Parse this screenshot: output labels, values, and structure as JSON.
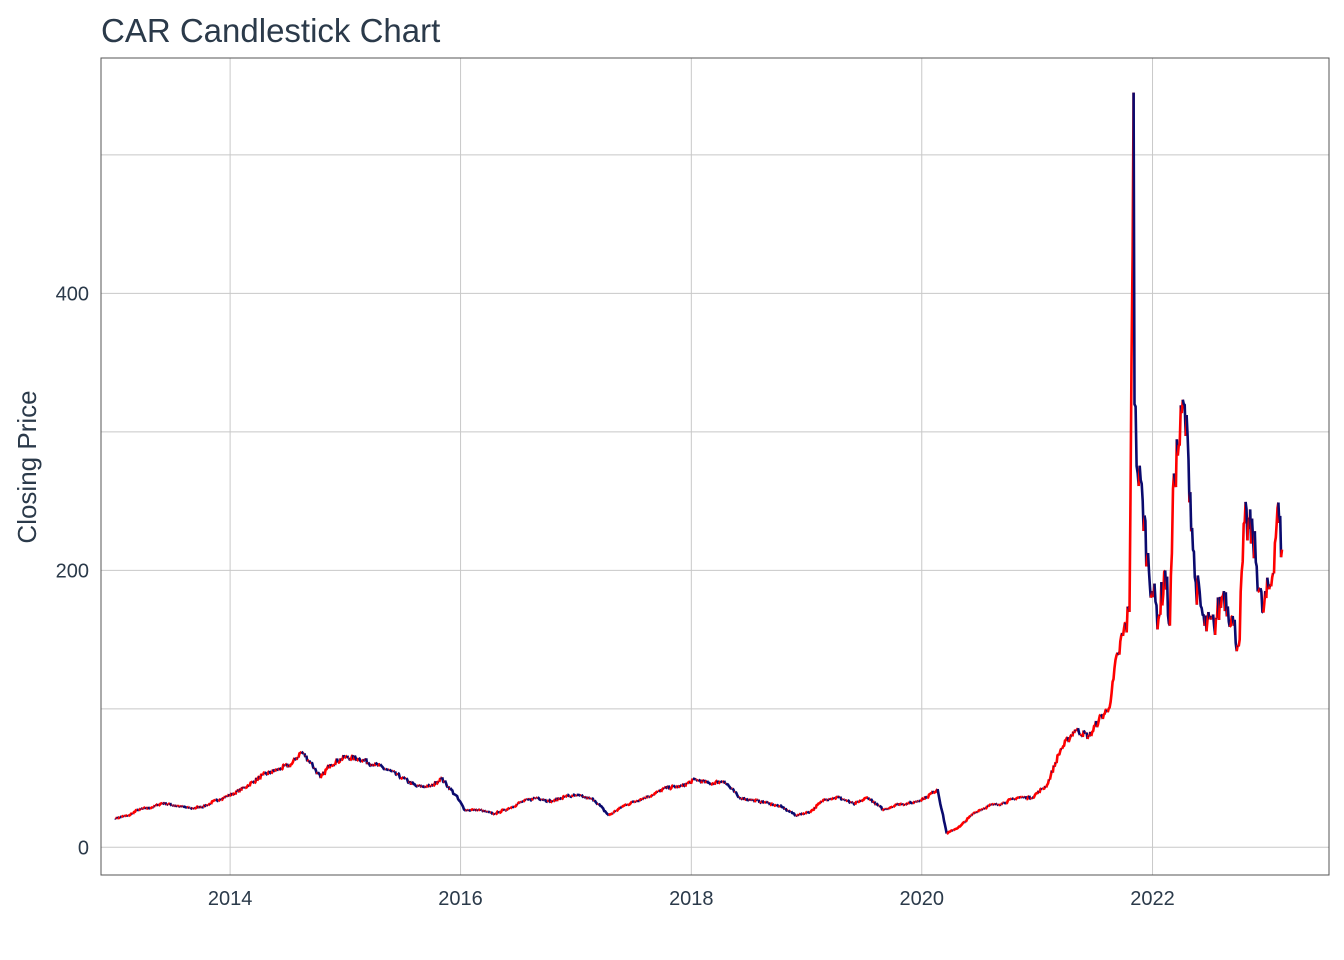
{
  "chart_data": {
    "type": "line",
    "title": "CAR Candlestick Chart",
    "xlabel": "",
    "ylabel": "Closing Price",
    "x_ticks": [
      "2014",
      "2016",
      "2018",
      "2020",
      "2022"
    ],
    "y_ticks": [
      0,
      200,
      400
    ],
    "xlim": [
      "2012-11-18",
      "2023-07-14"
    ],
    "ylim": [
      -20,
      570
    ],
    "grid": true,
    "legend": "none",
    "colors": {
      "up": "#ff0000",
      "down": "#0a0a6e",
      "grid": "#c8c8c8",
      "frame": "#555555"
    },
    "series": [
      {
        "values": [
          [
            "2013-01-02",
            21
          ],
          [
            "2013-02-15",
            23
          ],
          [
            "2013-03-15",
            27
          ],
          [
            "2013-05-01",
            29
          ],
          [
            "2013-06-01",
            32
          ],
          [
            "2013-07-15",
            30
          ],
          [
            "2013-09-01",
            28
          ],
          [
            "2013-10-15",
            30
          ],
          [
            "2013-12-01",
            35
          ],
          [
            "2014-01-15",
            39
          ],
          [
            "2014-03-01",
            45
          ],
          [
            "2014-04-15",
            52
          ],
          [
            "2014-06-01",
            56
          ],
          [
            "2014-07-15",
            60
          ],
          [
            "2014-08-15",
            69
          ],
          [
            "2014-09-15",
            61
          ],
          [
            "2014-10-15",
            50
          ],
          [
            "2014-11-15",
            60
          ],
          [
            "2015-01-01",
            65
          ],
          [
            "2015-02-15",
            64
          ],
          [
            "2015-04-01",
            60
          ],
          [
            "2015-05-15",
            56
          ],
          [
            "2015-07-01",
            50
          ],
          [
            "2015-08-15",
            44
          ],
          [
            "2015-10-01",
            44
          ],
          [
            "2015-11-01",
            50
          ],
          [
            "2015-12-15",
            38
          ],
          [
            "2016-01-15",
            27
          ],
          [
            "2016-03-01",
            27
          ],
          [
            "2016-04-15",
            24
          ],
          [
            "2016-06-01",
            28
          ],
          [
            "2016-07-15",
            33
          ],
          [
            "2016-09-01",
            36
          ],
          [
            "2016-10-15",
            33
          ],
          [
            "2016-12-01",
            37
          ],
          [
            "2017-01-15",
            37
          ],
          [
            "2017-03-01",
            34
          ],
          [
            "2017-04-15",
            23
          ],
          [
            "2017-06-01",
            30
          ],
          [
            "2017-07-15",
            34
          ],
          [
            "2017-09-01",
            38
          ],
          [
            "2017-10-15",
            43
          ],
          [
            "2017-12-01",
            44
          ],
          [
            "2018-01-15",
            49
          ],
          [
            "2018-03-01",
            46
          ],
          [
            "2018-04-15",
            48
          ],
          [
            "2018-06-01",
            36
          ],
          [
            "2018-07-15",
            34
          ],
          [
            "2018-09-01",
            32
          ],
          [
            "2018-10-15",
            29
          ],
          [
            "2018-12-01",
            23
          ],
          [
            "2019-01-15",
            26
          ],
          [
            "2019-03-01",
            35
          ],
          [
            "2019-04-15",
            36
          ],
          [
            "2019-06-01",
            31
          ],
          [
            "2019-07-15",
            36
          ],
          [
            "2019-09-01",
            27
          ],
          [
            "2019-10-15",
            31
          ],
          [
            "2019-12-01",
            32
          ],
          [
            "2020-01-15",
            36
          ],
          [
            "2020-02-20",
            42
          ],
          [
            "2020-03-20",
            10
          ],
          [
            "2020-05-01",
            15
          ],
          [
            "2020-06-15",
            25
          ],
          [
            "2020-08-01",
            30
          ],
          [
            "2020-09-15",
            32
          ],
          [
            "2020-11-01",
            36
          ],
          [
            "2020-12-15",
            36
          ],
          [
            "2021-02-01",
            45
          ],
          [
            "2021-03-15",
            70
          ],
          [
            "2021-05-01",
            85
          ],
          [
            "2021-06-15",
            80
          ],
          [
            "2021-07-15",
            92
          ],
          [
            "2021-08-15",
            100
          ],
          [
            "2021-09-15",
            140
          ],
          [
            "2021-10-20",
            170
          ],
          [
            "2021-11-02",
            545
          ],
          [
            "2021-11-05",
            320
          ],
          [
            "2021-11-15",
            270
          ],
          [
            "2021-12-01",
            250
          ],
          [
            "2021-12-15",
            210
          ],
          [
            "2022-01-01",
            185
          ],
          [
            "2022-01-20",
            165
          ],
          [
            "2022-02-10",
            200
          ],
          [
            "2022-02-25",
            160
          ],
          [
            "2022-03-10",
            270
          ],
          [
            "2022-03-25",
            290
          ],
          [
            "2022-04-10",
            320
          ],
          [
            "2022-04-25",
            280
          ],
          [
            "2022-05-15",
            195
          ],
          [
            "2022-06-15",
            160
          ],
          [
            "2022-07-15",
            160
          ],
          [
            "2022-08-15",
            185
          ],
          [
            "2022-09-15",
            160
          ],
          [
            "2022-10-01",
            145
          ],
          [
            "2022-10-20",
            235
          ],
          [
            "2022-11-15",
            225
          ],
          [
            "2022-12-15",
            170
          ],
          [
            "2023-01-15",
            195
          ],
          [
            "2023-02-01",
            245
          ],
          [
            "2023-02-15",
            215
          ]
        ]
      }
    ]
  }
}
